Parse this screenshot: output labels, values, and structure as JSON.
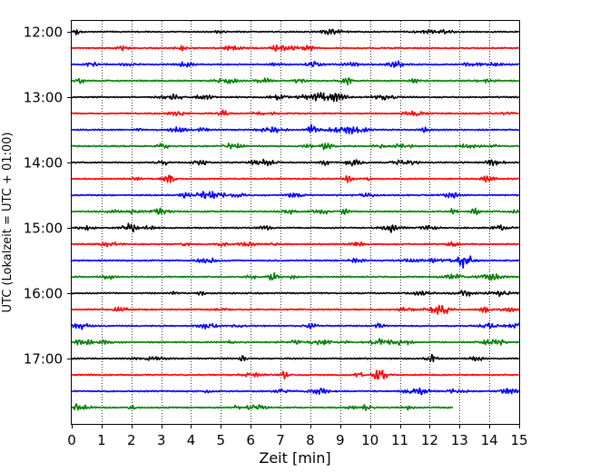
{
  "chart_data": {
    "type": "line",
    "title": "",
    "xlabel": "Zeit  [min]",
    "ylabel": "UTC (Lokalzeit = UTC + 01:00)",
    "xlim": [
      0,
      15
    ],
    "x_ticks": [
      "0",
      "1",
      "2",
      "3",
      "4",
      "5",
      "6",
      "7",
      "8",
      "9",
      "10",
      "11",
      "12",
      "13",
      "14",
      "15"
    ],
    "y_tick_labels": [
      "12:00",
      "13:00",
      "14:00",
      "15:00",
      "16:00",
      "17:00"
    ],
    "ylim_utc": [
      "11:50",
      "18:00"
    ],
    "trace_interval_minutes": 15,
    "grid": "vertical dotted lines at each minute",
    "trace_colors": [
      "#000000",
      "#ff0000",
      "#0000ff",
      "#007f00"
    ],
    "traces": [
      {
        "start": "12:00",
        "color": "#000000",
        "end_min": 15
      },
      {
        "start": "12:15",
        "color": "#ff0000",
        "end_min": 15
      },
      {
        "start": "12:30",
        "color": "#0000ff",
        "end_min": 15
      },
      {
        "start": "12:45",
        "color": "#007f00",
        "end_min": 15
      },
      {
        "start": "13:00",
        "color": "#000000",
        "end_min": 15
      },
      {
        "start": "13:15",
        "color": "#ff0000",
        "end_min": 15
      },
      {
        "start": "13:30",
        "color": "#0000ff",
        "end_min": 15
      },
      {
        "start": "13:45",
        "color": "#007f00",
        "end_min": 15
      },
      {
        "start": "14:00",
        "color": "#000000",
        "end_min": 15
      },
      {
        "start": "14:15",
        "color": "#ff0000",
        "end_min": 15
      },
      {
        "start": "14:30",
        "color": "#0000ff",
        "end_min": 15
      },
      {
        "start": "14:45",
        "color": "#007f00",
        "end_min": 15
      },
      {
        "start": "15:00",
        "color": "#000000",
        "end_min": 15
      },
      {
        "start": "15:15",
        "color": "#ff0000",
        "end_min": 15
      },
      {
        "start": "15:30",
        "color": "#0000ff",
        "end_min": 15
      },
      {
        "start": "15:45",
        "color": "#007f00",
        "end_min": 15
      },
      {
        "start": "16:00",
        "color": "#000000",
        "end_min": 15
      },
      {
        "start": "16:15",
        "color": "#ff0000",
        "end_min": 15
      },
      {
        "start": "16:30",
        "color": "#0000ff",
        "end_min": 15
      },
      {
        "start": "16:45",
        "color": "#007f00",
        "end_min": 15
      },
      {
        "start": "17:00",
        "color": "#000000",
        "end_min": 15
      },
      {
        "start": "17:15",
        "color": "#ff0000",
        "end_min": 15
      },
      {
        "start": "17:30",
        "color": "#0000ff",
        "end_min": 15
      },
      {
        "start": "17:45",
        "color": "#007f00",
        "end_min": 12.8
      }
    ]
  }
}
